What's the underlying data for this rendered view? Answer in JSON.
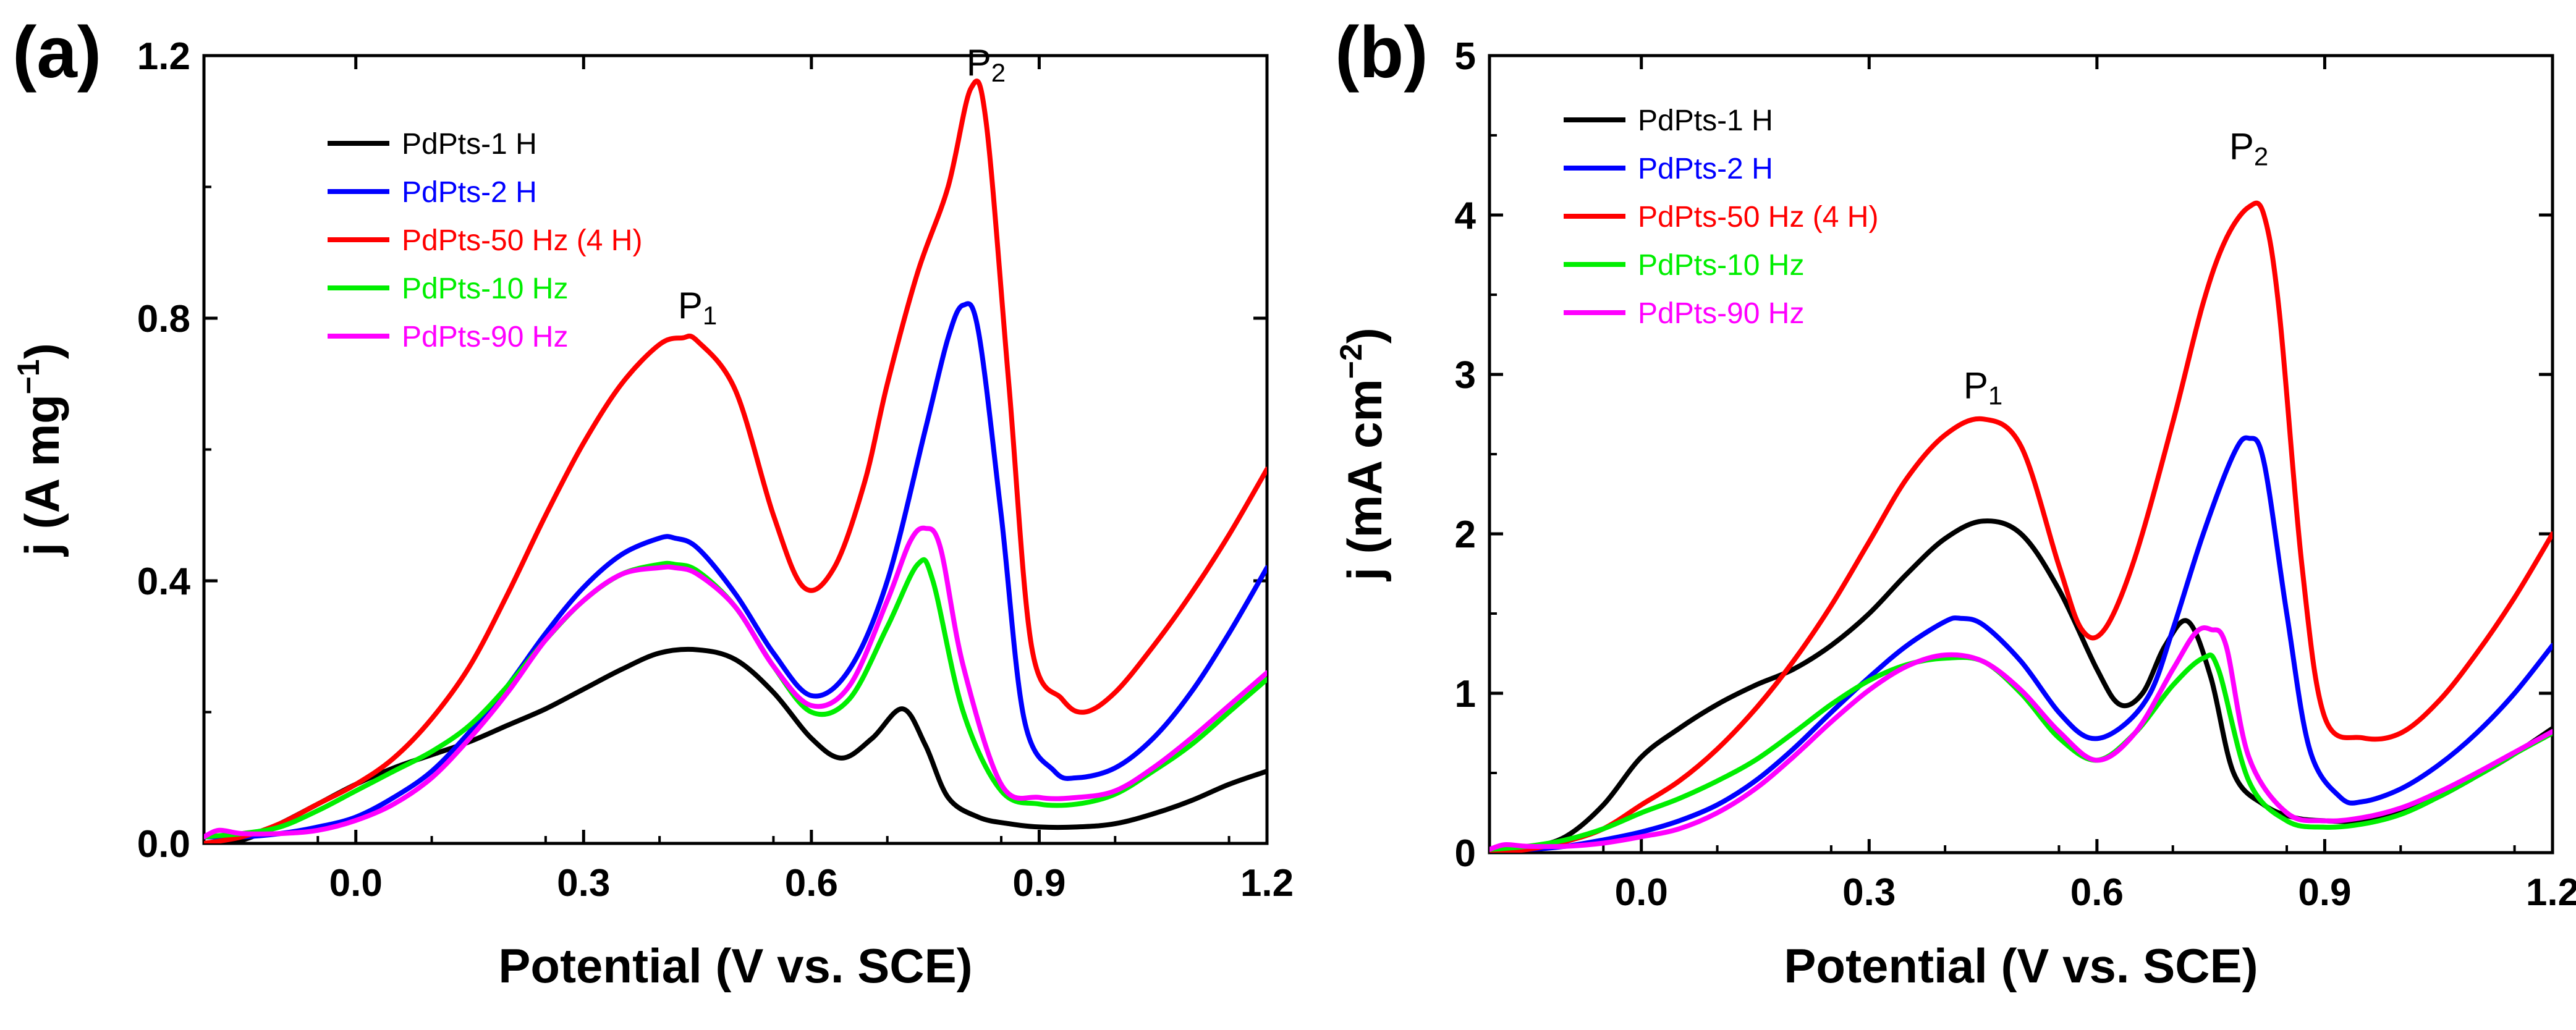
{
  "chart_data": [
    {
      "panel_label": "(a)",
      "type": "line",
      "xlabel": "Potential (V vs. SCE)",
      "ylabel": "j (A mg",
      "ylabel_sup": "−1",
      "ylabel_close": ")",
      "xlim": [
        -0.2,
        1.2
      ],
      "ylim": [
        0.0,
        1.2
      ],
      "xticks": [
        0.0,
        0.3,
        0.6,
        0.9,
        1.2
      ],
      "xtick_labels": [
        "0.0",
        "0.3",
        "0.6",
        "0.9",
        "1.2"
      ],
      "yticks": [
        0.0,
        0.4,
        0.8,
        1.2
      ],
      "ytick_labels": [
        "0.0",
        "0.4",
        "0.8",
        "1.2"
      ],
      "annotations": [
        {
          "main": "P",
          "sub": "1",
          "x": 0.45,
          "y": 0.8
        },
        {
          "main": "P",
          "sub": "2",
          "x": 0.83,
          "y": 1.17
        }
      ],
      "series": [
        {
          "name": "PdPts-1 H",
          "color": "#000000",
          "x": [
            -0.2,
            -0.15,
            -0.1,
            -0.05,
            0.0,
            0.05,
            0.1,
            0.15,
            0.2,
            0.25,
            0.3,
            0.35,
            0.4,
            0.45,
            0.5,
            0.55,
            0.6,
            0.64,
            0.68,
            0.72,
            0.75,
            0.78,
            0.82,
            0.86,
            0.9,
            0.95,
            1.0,
            1.05,
            1.1,
            1.15,
            1.2
          ],
          "y": [
            0.0,
            0.005,
            0.03,
            0.06,
            0.09,
            0.115,
            0.135,
            0.155,
            0.18,
            0.205,
            0.235,
            0.265,
            0.29,
            0.295,
            0.28,
            0.23,
            0.16,
            0.13,
            0.16,
            0.205,
            0.15,
            0.07,
            0.04,
            0.03,
            0.025,
            0.025,
            0.03,
            0.045,
            0.065,
            0.09,
            0.11
          ]
        },
        {
          "name": "PdPts-2 H",
          "color": "#0000ff",
          "x": [
            -0.2,
            -0.15,
            -0.1,
            -0.05,
            0.0,
            0.05,
            0.1,
            0.15,
            0.2,
            0.25,
            0.3,
            0.35,
            0.4,
            0.42,
            0.45,
            0.5,
            0.55,
            0.6,
            0.65,
            0.7,
            0.75,
            0.78,
            0.8,
            0.82,
            0.85,
            0.88,
            0.92,
            0.95,
            1.0,
            1.05,
            1.1,
            1.15,
            1.2
          ],
          "y": [
            0.01,
            0.01,
            0.015,
            0.025,
            0.04,
            0.07,
            0.11,
            0.17,
            0.24,
            0.32,
            0.39,
            0.44,
            0.465,
            0.465,
            0.45,
            0.38,
            0.29,
            0.225,
            0.265,
            0.4,
            0.63,
            0.77,
            0.82,
            0.78,
            0.5,
            0.19,
            0.11,
            0.1,
            0.115,
            0.16,
            0.23,
            0.32,
            0.42
          ]
        },
        {
          "name": "PdPts-50 Hz (4 H)",
          "color": "#ff0000",
          "x": [
            -0.2,
            -0.15,
            -0.1,
            -0.05,
            0.0,
            0.05,
            0.1,
            0.15,
            0.2,
            0.25,
            0.3,
            0.35,
            0.4,
            0.43,
            0.45,
            0.5,
            0.55,
            0.59,
            0.63,
            0.67,
            0.7,
            0.74,
            0.78,
            0.81,
            0.83,
            0.86,
            0.89,
            0.93,
            0.96,
            1.0,
            1.05,
            1.1,
            1.15,
            1.2
          ],
          "y": [
            0.0,
            0.01,
            0.03,
            0.06,
            0.09,
            0.13,
            0.19,
            0.27,
            0.38,
            0.5,
            0.61,
            0.7,
            0.76,
            0.77,
            0.765,
            0.69,
            0.5,
            0.39,
            0.42,
            0.55,
            0.7,
            0.87,
            1.0,
            1.15,
            1.1,
            0.7,
            0.3,
            0.22,
            0.2,
            0.23,
            0.3,
            0.38,
            0.47,
            0.57
          ]
        },
        {
          "name": "PdPts-10 Hz",
          "color": "#00ee00",
          "x": [
            -0.2,
            -0.15,
            -0.1,
            -0.05,
            0.0,
            0.05,
            0.1,
            0.15,
            0.2,
            0.25,
            0.3,
            0.35,
            0.4,
            0.42,
            0.45,
            0.5,
            0.55,
            0.6,
            0.65,
            0.7,
            0.74,
            0.76,
            0.8,
            0.85,
            0.9,
            0.95,
            1.0,
            1.05,
            1.1,
            1.15,
            1.2
          ],
          "y": [
            0.01,
            0.015,
            0.025,
            0.05,
            0.08,
            0.11,
            0.14,
            0.18,
            0.24,
            0.31,
            0.37,
            0.41,
            0.425,
            0.425,
            0.415,
            0.36,
            0.27,
            0.2,
            0.22,
            0.33,
            0.425,
            0.4,
            0.2,
            0.08,
            0.06,
            0.06,
            0.075,
            0.11,
            0.15,
            0.2,
            0.25
          ]
        },
        {
          "name": "PdPts-90 Hz",
          "color": "#ff00ff",
          "x": [
            -0.2,
            -0.18,
            -0.15,
            -0.1,
            -0.05,
            0.0,
            0.05,
            0.1,
            0.15,
            0.2,
            0.25,
            0.3,
            0.35,
            0.4,
            0.42,
            0.45,
            0.5,
            0.55,
            0.6,
            0.65,
            0.7,
            0.73,
            0.75,
            0.77,
            0.8,
            0.85,
            0.9,
            0.95,
            1.0,
            1.05,
            1.1,
            1.15,
            1.2
          ],
          "y": [
            0.01,
            0.02,
            0.015,
            0.015,
            0.02,
            0.035,
            0.06,
            0.1,
            0.16,
            0.23,
            0.31,
            0.37,
            0.41,
            0.42,
            0.42,
            0.41,
            0.36,
            0.27,
            0.21,
            0.24,
            0.37,
            0.46,
            0.48,
            0.45,
            0.27,
            0.09,
            0.07,
            0.07,
            0.08,
            0.115,
            0.16,
            0.21,
            0.26
          ]
        }
      ]
    },
    {
      "panel_label": "(b)",
      "type": "line",
      "xlabel": "Potential (V vs. SCE)",
      "ylabel": "j (mA cm",
      "ylabel_sup": "−2",
      "ylabel_close": ")",
      "xlim": [
        -0.2,
        1.2
      ],
      "ylim": [
        0,
        5
      ],
      "xticks": [
        0.0,
        0.3,
        0.6,
        0.9,
        1.2
      ],
      "xtick_labels": [
        "0.0",
        "0.3",
        "0.6",
        "0.9",
        "1.2"
      ],
      "yticks": [
        0,
        1,
        2,
        3,
        4,
        5
      ],
      "ytick_labels": [
        "0",
        "1",
        "2",
        "3",
        "4",
        "5"
      ],
      "annotations": [
        {
          "main": "P",
          "sub": "1",
          "x": 0.45,
          "y": 2.85
        },
        {
          "main": "P",
          "sub": "2",
          "x": 0.8,
          "y": 4.35
        }
      ],
      "series": [
        {
          "name": "PdPts-1 H",
          "color": "#000000",
          "x": [
            -0.2,
            -0.15,
            -0.1,
            -0.05,
            0.0,
            0.05,
            0.1,
            0.15,
            0.2,
            0.25,
            0.3,
            0.35,
            0.4,
            0.45,
            0.5,
            0.55,
            0.6,
            0.63,
            0.66,
            0.69,
            0.72,
            0.75,
            0.78,
            0.82,
            0.86,
            0.9,
            0.95,
            1.0,
            1.05,
            1.1,
            1.15,
            1.2
          ],
          "y": [
            0.0,
            0.03,
            0.1,
            0.3,
            0.6,
            0.78,
            0.93,
            1.05,
            1.15,
            1.3,
            1.5,
            1.75,
            1.97,
            2.08,
            2.0,
            1.65,
            1.15,
            0.93,
            1.0,
            1.3,
            1.45,
            1.1,
            0.5,
            0.3,
            0.22,
            0.2,
            0.2,
            0.25,
            0.35,
            0.48,
            0.62,
            0.78
          ]
        },
        {
          "name": "PdPts-2 H",
          "color": "#0000ff",
          "x": [
            -0.2,
            -0.15,
            -0.1,
            -0.05,
            0.0,
            0.05,
            0.1,
            0.15,
            0.2,
            0.25,
            0.3,
            0.35,
            0.4,
            0.42,
            0.45,
            0.5,
            0.55,
            0.59,
            0.63,
            0.67,
            0.7,
            0.74,
            0.78,
            0.8,
            0.82,
            0.85,
            0.88,
            0.92,
            0.95,
            1.0,
            1.05,
            1.1,
            1.15,
            1.2
          ],
          "y": [
            0.02,
            0.02,
            0.04,
            0.08,
            0.13,
            0.2,
            0.3,
            0.45,
            0.65,
            0.88,
            1.1,
            1.3,
            1.45,
            1.47,
            1.43,
            1.2,
            0.88,
            0.72,
            0.78,
            1.0,
            1.4,
            2.0,
            2.5,
            2.6,
            2.45,
            1.5,
            0.65,
            0.35,
            0.32,
            0.4,
            0.55,
            0.75,
            1.0,
            1.3
          ]
        },
        {
          "name": "PdPts-50 Hz (4 H)",
          "color": "#ff0000",
          "x": [
            -0.2,
            -0.15,
            -0.1,
            -0.05,
            0.0,
            0.05,
            0.1,
            0.15,
            0.2,
            0.25,
            0.3,
            0.35,
            0.4,
            0.45,
            0.5,
            0.55,
            0.58,
            0.61,
            0.65,
            0.7,
            0.74,
            0.77,
            0.8,
            0.82,
            0.84,
            0.87,
            0.9,
            0.95,
            1.0,
            1.05,
            1.1,
            1.15,
            1.2
          ],
          "y": [
            0.0,
            0.02,
            0.07,
            0.15,
            0.3,
            0.45,
            0.65,
            0.9,
            1.2,
            1.55,
            1.95,
            2.35,
            2.62,
            2.72,
            2.55,
            1.8,
            1.4,
            1.4,
            1.85,
            2.7,
            3.45,
            3.85,
            4.05,
            4.0,
            3.4,
            1.8,
            0.85,
            0.72,
            0.75,
            0.95,
            1.25,
            1.6,
            2.0
          ]
        },
        {
          "name": "PdPts-10 Hz",
          "color": "#00ee00",
          "x": [
            -0.2,
            -0.15,
            -0.1,
            -0.05,
            0.0,
            0.05,
            0.1,
            0.15,
            0.2,
            0.25,
            0.3,
            0.35,
            0.4,
            0.45,
            0.5,
            0.55,
            0.6,
            0.65,
            0.7,
            0.74,
            0.76,
            0.8,
            0.85,
            0.9,
            0.95,
            1.0,
            1.05,
            1.1,
            1.15,
            1.2
          ],
          "y": [
            0.02,
            0.04,
            0.08,
            0.15,
            0.25,
            0.34,
            0.45,
            0.58,
            0.75,
            0.93,
            1.08,
            1.18,
            1.22,
            1.2,
            1.0,
            0.72,
            0.58,
            0.75,
            1.05,
            1.22,
            1.15,
            0.45,
            0.2,
            0.16,
            0.18,
            0.24,
            0.35,
            0.48,
            0.62,
            0.75
          ]
        },
        {
          "name": "PdPts-90 Hz",
          "color": "#ff00ff",
          "x": [
            -0.2,
            -0.18,
            -0.15,
            -0.1,
            -0.05,
            0.0,
            0.05,
            0.1,
            0.15,
            0.2,
            0.25,
            0.3,
            0.35,
            0.4,
            0.45,
            0.5,
            0.55,
            0.6,
            0.65,
            0.7,
            0.73,
            0.75,
            0.77,
            0.8,
            0.85,
            0.9,
            0.95,
            1.0,
            1.05,
            1.1,
            1.15,
            1.2
          ],
          "y": [
            0.02,
            0.05,
            0.04,
            0.04,
            0.06,
            0.1,
            0.15,
            0.25,
            0.4,
            0.6,
            0.82,
            1.02,
            1.17,
            1.24,
            1.2,
            1.02,
            0.76,
            0.58,
            0.75,
            1.15,
            1.38,
            1.4,
            1.3,
            0.6,
            0.25,
            0.2,
            0.22,
            0.28,
            0.38,
            0.5,
            0.63,
            0.76
          ]
        }
      ]
    }
  ]
}
